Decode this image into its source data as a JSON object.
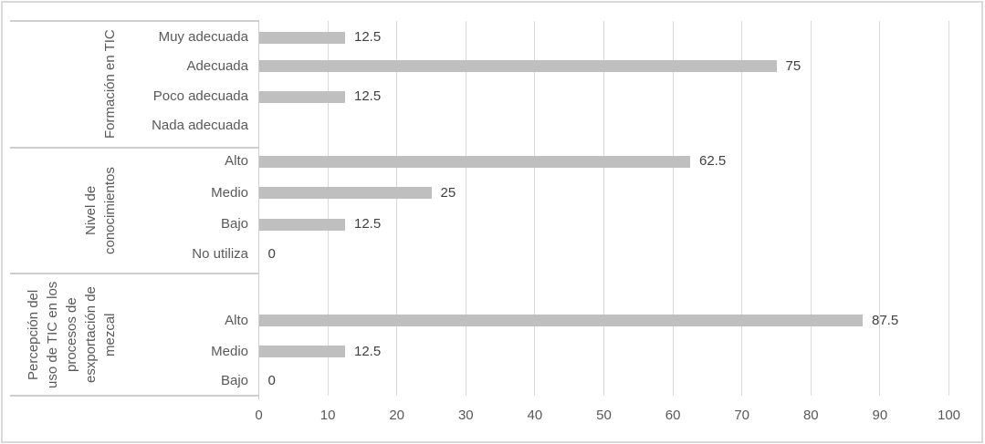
{
  "chart_data": {
    "type": "bar",
    "orientation": "horizontal",
    "title": "",
    "xlabel": "",
    "ylabel": "",
    "xlim": [
      0,
      100
    ],
    "x_ticks": [
      0,
      10,
      20,
      30,
      40,
      50,
      60,
      70,
      80,
      90,
      100
    ],
    "grid": true,
    "legend": false,
    "bar_color": "#bfbfbf",
    "gridline_color": "#d9d9d9",
    "axis_line_color": "#cfcfcf",
    "label_text_color": "#595959",
    "value_text_color": "#404040",
    "groups": [
      {
        "label": "Formación en TIC",
        "label_lines": [
          "Formación en TIC"
        ],
        "categories": [
          "Muy adecuada",
          "Adecuada",
          "Poco adecuada",
          "Nada adecuada"
        ],
        "values": [
          12.5,
          75,
          12.5,
          null
        ],
        "value_labels": [
          "12.5",
          "75",
          "12.5",
          ""
        ]
      },
      {
        "label": "Nivel de conocimientos",
        "label_lines": [
          "Nivel de",
          "conocimientos"
        ],
        "categories": [
          "Alto",
          "Medio",
          "Bajo",
          "No utiliza"
        ],
        "values": [
          62.5,
          25,
          12.5,
          0
        ],
        "value_labels": [
          "62.5",
          "25",
          "12.5",
          "0"
        ]
      },
      {
        "label": "Percepción del uso de TIC en los procesos de esxportación de mezcal",
        "label_lines": [
          "Percepción del",
          "uso de TIC en los",
          "procesos de",
          "esxportación de",
          "mezcal"
        ],
        "categories": [
          "Alto",
          "Medio",
          "Bajo"
        ],
        "values": [
          87.5,
          12.5,
          0
        ],
        "value_labels": [
          "87.5",
          "12.5",
          "0"
        ]
      }
    ]
  }
}
